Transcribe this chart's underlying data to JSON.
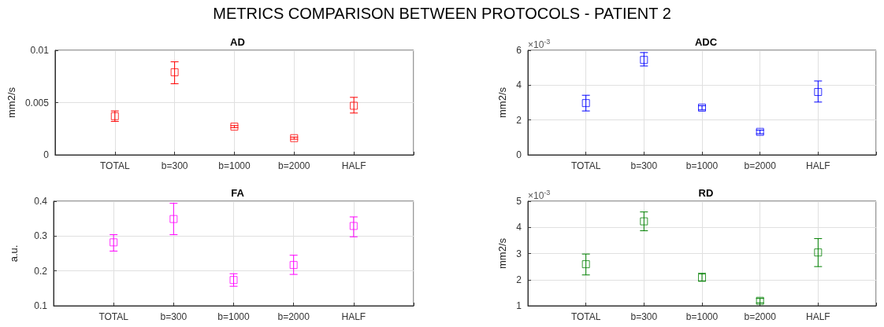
{
  "chart_data": [
    {
      "type": "scatter",
      "title": "AD",
      "ylabel": "mm2/s",
      "categories": [
        "TOTAL",
        "b=300",
        "b=1000",
        "b=2000",
        "HALF"
      ],
      "annotations": [
        "METRICS COMPARISON BETWEEN PROTOCOLS - PATIENT 2"
      ],
      "series": [
        {
          "color": "#ff0000",
          "values": [
            0.0037,
            0.0079,
            0.0027,
            0.0016,
            0.0047
          ],
          "errors": [
            [
              0.0032,
              0.0042
            ],
            [
              0.0068,
              0.0089
            ],
            [
              0.0026,
              0.0028
            ],
            [
              0.0015,
              0.0017
            ],
            [
              0.004,
              0.0055
            ]
          ]
        }
      ],
      "ylim": [
        0,
        0.01
      ],
      "yticks": [
        0,
        0.005,
        0.01
      ],
      "grid": true,
      "marker": "square"
    },
    {
      "type": "scatter",
      "title": "ADC",
      "ylabel": "mm2/s",
      "categories": [
        "TOTAL",
        "b=300",
        "b=1000",
        "b=2000",
        "HALF"
      ],
      "annotations": [
        "×10$^{-3}$"
      ],
      "series": [
        {
          "color": "#0000ff",
          "values": [
            2.97,
            5.45,
            2.71,
            1.32,
            3.61
          ],
          "errors": [
            [
              2.52,
              3.42
            ],
            [
              5.1,
              5.87
            ],
            [
              2.58,
              2.82
            ],
            [
              1.21,
              1.42
            ],
            [
              3.03,
              4.24
            ]
          ]
        }
      ],
      "ylim": [
        0,
        6
      ],
      "yticks": [
        0,
        2,
        4,
        6
      ],
      "grid": true,
      "marker": "square"
    },
    {
      "type": "scatter",
      "title": "FA",
      "ylabel": "a.u.",
      "categories": [
        "TOTAL",
        "b=300",
        "b=1000",
        "b=2000",
        "HALF"
      ],
      "series": [
        {
          "color": "#ff00ff",
          "values": [
            0.282,
            0.349,
            0.174,
            0.217,
            0.329
          ],
          "errors": [
            [
              0.257,
              0.304
            ],
            [
              0.304,
              0.394
            ],
            [
              0.156,
              0.192
            ],
            [
              0.19,
              0.245
            ],
            [
              0.298,
              0.355
            ]
          ]
        }
      ],
      "ylim": [
        0.1,
        0.4
      ],
      "yticks": [
        0.1,
        0.2,
        0.3,
        0.4
      ],
      "grid": true,
      "marker": "square"
    },
    {
      "type": "scatter",
      "title": "RD",
      "ylabel": "mm2/s",
      "categories": [
        "TOTAL",
        "b=300",
        "b=1000",
        "b=2000",
        "HALF"
      ],
      "annotations": [
        "×10$^{-3}$"
      ],
      "series": [
        {
          "color": "#008000",
          "values": [
            2.59,
            4.23,
            2.08,
            1.19,
            3.04
          ],
          "errors": [
            [
              2.18,
              2.98
            ],
            [
              3.87,
              4.59
            ],
            [
              1.94,
              2.24
            ],
            [
              1.11,
              1.28
            ],
            [
              2.5,
              3.57
            ]
          ]
        }
      ],
      "ylim": [
        1,
        5
      ],
      "yticks": [
        1,
        2,
        3,
        4,
        5
      ],
      "grid": true,
      "marker": "square"
    }
  ]
}
